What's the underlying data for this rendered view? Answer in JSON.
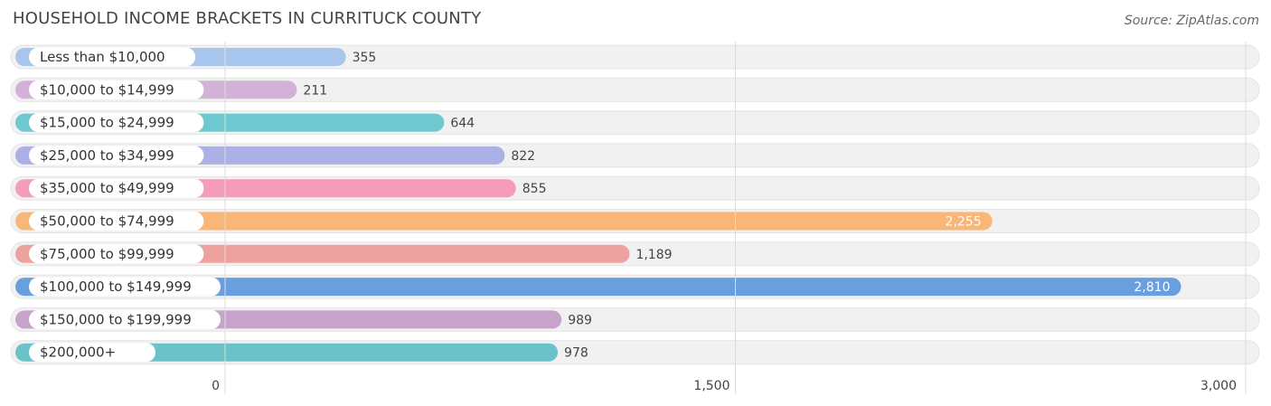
{
  "header": {
    "title": "HOUSEHOLD INCOME BRACKETS IN CURRITUCK COUNTY",
    "source": "Source: ZipAtlas.com"
  },
  "chart_data": {
    "type": "bar",
    "orientation": "horizontal",
    "title": "HOUSEHOLD INCOME BRACKETS IN CURRITUCK COUNTY",
    "categories": [
      "Less than $10,000",
      "$10,000 to $14,999",
      "$15,000 to $24,999",
      "$25,000 to $34,999",
      "$35,000 to $49,999",
      "$50,000 to $74,999",
      "$75,000 to $99,999",
      "$100,000 to $149,999",
      "$150,000 to $199,999",
      "$200,000+"
    ],
    "values": [
      355,
      211,
      644,
      822,
      855,
      2255,
      1189,
      2810,
      989,
      978
    ],
    "value_labels": [
      "355",
      "211",
      "644",
      "822",
      "855",
      "2,255",
      "1,189",
      "2,810",
      "989",
      "978"
    ],
    "colors": [
      "#a8c6ec",
      "#d2b2d6",
      "#6ec8cf",
      "#abb1e7",
      "#f59bbb",
      "#f8b677",
      "#eda29f",
      "#6a9fdf",
      "#c7a3cb",
      "#6bc3c9"
    ],
    "xlim": [
      0,
      3000
    ],
    "ticks": [
      0,
      1500,
      3000
    ],
    "tick_labels": [
      "0",
      "1,500",
      "3,000"
    ],
    "grid": true
  }
}
